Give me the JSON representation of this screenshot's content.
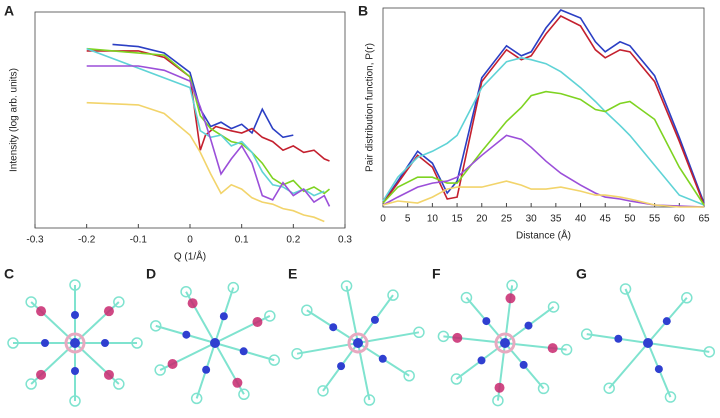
{
  "panels": [
    "A",
    "B",
    "C",
    "D",
    "E",
    "F",
    "G"
  ],
  "chart_data": [
    {
      "type": "line",
      "xlabel": "Q (1/Å)",
      "ylabel": "Intensity (log arb. units)",
      "xlim": [
        -0.3,
        0.3
      ],
      "ylim": [
        0,
        10
      ],
      "xticks": [
        -0.3,
        -0.2,
        -0.1,
        0,
        0.1,
        0.2,
        0.3
      ],
      "series": [
        {
          "color": "#2b3fc4",
          "x": [
            -0.15,
            -0.1,
            -0.05,
            0,
            0.02,
            0.04,
            0.06,
            0.08,
            0.1,
            0.12,
            0.14,
            0.16,
            0.18,
            0.2
          ],
          "values": [
            8.5,
            8.4,
            8.1,
            7.2,
            5.5,
            4.7,
            4.9,
            4.6,
            4.8,
            4.4,
            5.5,
            4.6,
            4.2,
            4.3
          ]
        },
        {
          "color": "#c4202e",
          "x": [
            -0.2,
            -0.1,
            -0.05,
            0,
            0.02,
            0.03,
            0.05,
            0.08,
            0.1,
            0.12,
            0.14,
            0.16,
            0.18,
            0.2,
            0.22,
            0.24,
            0.26,
            0.27
          ],
          "values": [
            8.2,
            8.2,
            7.9,
            7.0,
            3.6,
            4.3,
            4.7,
            4.5,
            4.4,
            4.6,
            4.2,
            4.0,
            3.6,
            3.8,
            3.5,
            3.6,
            3.2,
            3.1
          ]
        },
        {
          "color": "#7ed321",
          "x": [
            -0.2,
            -0.05,
            0,
            0.02,
            0.04,
            0.06,
            0.08,
            0.1,
            0.12,
            0.14,
            0.16,
            0.18,
            0.2,
            0.22,
            0.24,
            0.26,
            0.27
          ],
          "values": [
            8.3,
            8.0,
            7.0,
            5.2,
            4.6,
            4.3,
            4.0,
            3.9,
            3.5,
            3.0,
            2.3,
            2.0,
            2.2,
            1.7,
            1.9,
            1.6,
            1.8
          ]
        },
        {
          "color": "#5fd3d6",
          "x": [
            -0.2,
            0,
            0.02,
            0.04,
            0.06,
            0.08,
            0.1,
            0.12,
            0.14,
            0.16,
            0.18,
            0.2,
            0.22,
            0.24,
            0.26
          ],
          "values": [
            8.3,
            6.5,
            4.5,
            4.2,
            4.3,
            3.8,
            4.0,
            3.5,
            2.6,
            2.0,
            1.9,
            1.6,
            1.8,
            1.5,
            1.7
          ]
        },
        {
          "color": "#9b4fd9",
          "x": [
            -0.2,
            -0.1,
            -0.05,
            0,
            0.02,
            0.04,
            0.06,
            0.08,
            0.1,
            0.12,
            0.14,
            0.16,
            0.18,
            0.2,
            0.22,
            0.24,
            0.26,
            0.27
          ],
          "values": [
            7.5,
            7.5,
            7.3,
            6.8,
            5.6,
            4.1,
            2.5,
            3.2,
            3.8,
            3.0,
            1.5,
            1.3,
            2.1,
            1.5,
            1.8,
            1.2,
            1.5,
            1.0
          ]
        },
        {
          "color": "#f2d46b",
          "x": [
            -0.2,
            -0.1,
            -0.05,
            0,
            0.02,
            0.04,
            0.06,
            0.08,
            0.1,
            0.12,
            0.14,
            0.16,
            0.18,
            0.2,
            0.22,
            0.24,
            0.26
          ],
          "values": [
            5.8,
            5.7,
            5.3,
            4.3,
            3.5,
            2.5,
            1.6,
            2.0,
            1.8,
            1.4,
            1.2,
            1.1,
            0.9,
            0.8,
            0.6,
            0.5,
            0.3
          ]
        }
      ]
    },
    {
      "type": "line",
      "xlabel": "Distance (Å)",
      "ylabel": "Pair distribution function, P(r)",
      "xlim": [
        0,
        65
      ],
      "ylim": [
        0,
        10
      ],
      "xticks": [
        0,
        5,
        10,
        15,
        20,
        25,
        30,
        35,
        40,
        45,
        50,
        55,
        60,
        65
      ],
      "x": [
        0,
        3,
        7,
        10,
        13,
        15,
        20,
        25,
        28,
        30,
        33,
        36,
        40,
        43,
        45,
        48,
        50,
        55,
        60,
        65
      ],
      "series": [
        {
          "color": "#2b3fc4",
          "values": [
            0.2,
            1.3,
            2.8,
            2.2,
            0.7,
            1.3,
            6.5,
            8.1,
            7.6,
            7.8,
            9.0,
            9.9,
            9.5,
            8.3,
            7.8,
            8.3,
            8.1,
            6.6,
            3.5,
            0.2
          ]
        },
        {
          "color": "#c4202e",
          "values": [
            0.2,
            1.2,
            2.6,
            2.0,
            0.4,
            0.5,
            6.3,
            7.9,
            7.4,
            7.6,
            8.7,
            9.6,
            9.1,
            7.9,
            7.5,
            7.9,
            7.8,
            6.3,
            3.3,
            0.1
          ]
        },
        {
          "color": "#5fd3d6",
          "values": [
            0.3,
            1.5,
            2.5,
            2.8,
            3.2,
            3.6,
            6.0,
            7.3,
            7.5,
            7.4,
            7.2,
            6.8,
            6.0,
            5.3,
            4.8,
            4.1,
            3.6,
            2.1,
            0.6,
            0.1
          ]
        },
        {
          "color": "#7ed321",
          "values": [
            0.2,
            1.0,
            1.5,
            1.5,
            1.2,
            1.2,
            2.8,
            4.3,
            5.0,
            5.6,
            5.8,
            5.7,
            5.4,
            4.9,
            4.8,
            5.2,
            5.3,
            4.4,
            2.0,
            0.1
          ]
        },
        {
          "color": "#9b4fd9",
          "values": [
            0.1,
            0.5,
            1.0,
            1.2,
            1.3,
            1.5,
            2.6,
            3.6,
            3.4,
            3.0,
            2.3,
            1.7,
            1.1,
            0.7,
            0.5,
            0.4,
            0.3,
            0.1,
            0.05,
            0
          ]
        },
        {
          "color": "#f2d46b",
          "values": [
            0.1,
            0.3,
            0.2,
            0.5,
            0.9,
            1.0,
            1.0,
            1.3,
            1.1,
            0.9,
            0.9,
            1.0,
            0.8,
            0.6,
            0.6,
            0.5,
            0.4,
            0.1,
            0,
            0
          ]
        }
      ]
    }
  ]
}
